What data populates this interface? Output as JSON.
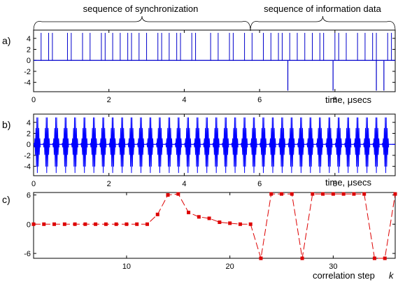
{
  "chart_data": {
    "top_labels": [
      "sequence of synchronization",
      "sequence of information data"
    ],
    "panels": [
      {
        "label": "a)",
        "type": "line",
        "xlabel": "time, μsecs",
        "xlim": [
          0,
          9.6
        ],
        "ylim": [
          -5.7,
          5.5
        ],
        "xticks": [
          0,
          2,
          4,
          6,
          8
        ],
        "yticks": [
          4,
          2,
          0,
          -2,
          -4
        ],
        "series": [
          {
            "color": "#0000cc",
            "pos_pulse_times": [
              0.2,
              0.4,
              0.5,
              0.9,
              1.0,
              1.3,
              1.5,
              1.8,
              1.9,
              2.1,
              2.3,
              2.5,
              2.6,
              2.8,
              3.0,
              3.3,
              3.4,
              3.6,
              3.8,
              3.9,
              4.2,
              4.3,
              4.7,
              4.9,
              5.2,
              5.3,
              5.6,
              5.8,
              6.1,
              6.3,
              6.5,
              6.6,
              6.8,
              7.0,
              7.2,
              7.4,
              7.6,
              7.7,
              8.0,
              8.1,
              8.3,
              8.6,
              8.8,
              9.0,
              9.1,
              9.4,
              9.5
            ],
            "neg_pulse_times": [
              6.75,
              7.95,
              9.1,
              9.3
            ]
          }
        ]
      },
      {
        "label": "b)",
        "type": "line",
        "xlabel": "time, μsecs",
        "xlim": [
          0,
          9.6
        ],
        "ylim": [
          -5.7,
          5.5
        ],
        "xticks": [
          0,
          2,
          4,
          6,
          8
        ],
        "yticks": [
          4,
          2,
          0,
          -2,
          -4
        ],
        "series": [
          {
            "color": "#0000ff",
            "burst_times": [
              0.1,
              0.35,
              0.6,
              0.85,
              1.1,
              1.35,
              1.6,
              1.85,
              2.1,
              2.35,
              2.6,
              2.85,
              3.1,
              3.35,
              3.6,
              3.85,
              4.1,
              4.35,
              4.6,
              4.85,
              5.1,
              5.35,
              5.6,
              5.85,
              6.1,
              6.35,
              6.6,
              6.85,
              7.1,
              7.35,
              7.6,
              7.85,
              8.1,
              8.35,
              8.6,
              8.85,
              9.1,
              9.35
            ]
          }
        ]
      },
      {
        "label": "c)",
        "type": "line",
        "xlabel": "correlation step",
        "xlabel_k": "k",
        "xlim": [
          1,
          36
        ],
        "ylim": [
          -7,
          6.5
        ],
        "xticks": [
          10,
          20,
          30
        ],
        "yticks": [
          6,
          0,
          -6
        ],
        "series": [
          {
            "color": "#dd0000",
            "x": [
              1,
              2,
              3,
              4,
              5,
              6,
              7,
              8,
              9,
              10,
              11,
              12,
              13,
              14,
              15,
              16,
              17,
              18,
              19,
              20,
              21,
              22,
              23,
              24,
              25,
              26,
              27,
              28,
              29,
              30,
              31,
              32,
              33,
              34,
              35,
              36
            ],
            "y": [
              0,
              0,
              0,
              0,
              0,
              0,
              0,
              0,
              0,
              0,
              0,
              0,
              2,
              6,
              6.2,
              2.4,
              1.5,
              1.2,
              0.4,
              0.2,
              0,
              0,
              -7,
              6.2,
              6.2,
              6.2,
              -7,
              6.2,
              6.2,
              6.2,
              6.2,
              6.2,
              6.2,
              -7,
              -7,
              6.2
            ]
          }
        ]
      }
    ]
  }
}
